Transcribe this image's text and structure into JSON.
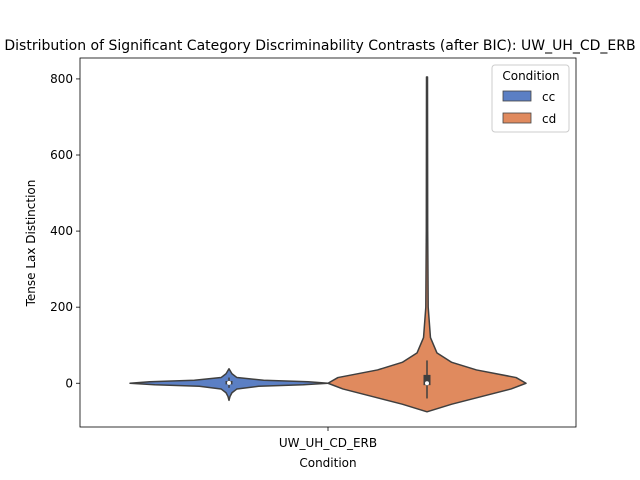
{
  "chart_data": {
    "type": "violin",
    "title": "Distribution of Significant Category Discriminability Contrasts (after BIC): UW_UH_CD_ERB",
    "xlabel": "Condition",
    "ylabel": "Tense Lax Distinction",
    "categories": [
      "UW_UH_CD_ERB"
    ],
    "ylim": [
      -115,
      855
    ],
    "yticks": [
      0,
      200,
      400,
      600,
      800
    ],
    "legend": {
      "title": "Condition",
      "position": "top-right",
      "entries": [
        {
          "name": "cc",
          "color": "#5b7fc4"
        },
        {
          "name": "cd",
          "color": "#e08a5e"
        }
      ]
    },
    "series": [
      {
        "name": "cc",
        "category": "UW_UH_CD_ERB",
        "color": "#5b7fc4",
        "min": -45,
        "max": 38,
        "q1": -3,
        "median": 1,
        "q3": 6,
        "whisker_low": -12,
        "whisker_high": 15,
        "density": [
          [
            -45,
            0.0
          ],
          [
            -35,
            0.01
          ],
          [
            -25,
            0.03
          ],
          [
            -15,
            0.08
          ],
          [
            -8,
            0.3
          ],
          [
            -4,
            0.75
          ],
          [
            0,
            1.0
          ],
          [
            4,
            0.8
          ],
          [
            8,
            0.35
          ],
          [
            15,
            0.08
          ],
          [
            25,
            0.03
          ],
          [
            38,
            0.0
          ]
        ]
      },
      {
        "name": "cd",
        "category": "UW_UH_CD_ERB",
        "color": "#e08a5e",
        "min": -75,
        "max": 805,
        "q1": -5,
        "median": 0,
        "q3": 22,
        "whisker_low": -40,
        "whisker_high": 60,
        "density": [
          [
            -75,
            0.0
          ],
          [
            -55,
            0.25
          ],
          [
            -35,
            0.55
          ],
          [
            -15,
            0.85
          ],
          [
            0,
            1.0
          ],
          [
            15,
            0.9
          ],
          [
            35,
            0.5
          ],
          [
            55,
            0.25
          ],
          [
            80,
            0.1
          ],
          [
            120,
            0.035
          ],
          [
            200,
            0.012
          ],
          [
            400,
            0.007
          ],
          [
            600,
            0.006
          ],
          [
            805,
            0.005
          ]
        ]
      }
    ]
  }
}
